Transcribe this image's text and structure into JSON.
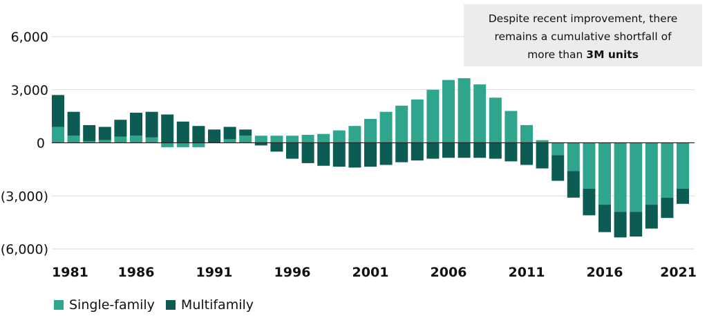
{
  "annotation": {
    "line1": "Despite recent improvement, there",
    "line2": "remains a cumulative shortfall of",
    "line3_pre": "more than ",
    "line3_bold": "3M units"
  },
  "legend": {
    "single_label": "Single-family",
    "multi_label": "Multifamily"
  },
  "colors": {
    "single": "#2ea58c",
    "multi": "#0d5c54",
    "grid": "#d9d9d9",
    "zero": "#222222"
  },
  "chart_data": {
    "type": "bar",
    "stacked": true,
    "x": [
      1981,
      1982,
      1983,
      1984,
      1985,
      1986,
      1987,
      1988,
      1989,
      1990,
      1991,
      1992,
      1993,
      1994,
      1995,
      1996,
      1997,
      1998,
      1999,
      2000,
      2001,
      2002,
      2003,
      2004,
      2005,
      2006,
      2007,
      2008,
      2009,
      2010,
      2011,
      2012,
      2013,
      2014,
      2015,
      2016,
      2017,
      2018,
      2019,
      2020,
      2021
    ],
    "series": [
      {
        "name": "Single-family",
        "values": [
          900,
          400,
          100,
          150,
          350,
          400,
          300,
          -250,
          -250,
          -250,
          0,
          200,
          400,
          400,
          400,
          400,
          450,
          500,
          700,
          950,
          1350,
          1750,
          2100,
          2450,
          3000,
          3550,
          3650,
          3300,
          2550,
          1800,
          1000,
          150,
          -700,
          -1600,
          -2600,
          -3500,
          -3900,
          -3900,
          -3500,
          -3100,
          -2600
        ]
      },
      {
        "name": "Multifamily",
        "values": [
          1800,
          1350,
          900,
          750,
          950,
          1300,
          1450,
          1600,
          1200,
          950,
          750,
          700,
          350,
          -150,
          -500,
          -900,
          -1150,
          -1300,
          -1350,
          -1400,
          -1350,
          -1250,
          -1100,
          -1000,
          -900,
          -850,
          -850,
          -850,
          -900,
          -1050,
          -1250,
          -1450,
          -1450,
          -1500,
          -1500,
          -1550,
          -1450,
          -1400,
          -1350,
          -1150,
          -850
        ]
      }
    ],
    "yticks": [
      6000,
      3000,
      0,
      -3000,
      -6000
    ],
    "ytick_labels": [
      "6,000",
      "3,000",
      "0",
      "(3,000)",
      "(6,000)"
    ],
    "xtick_labels": [
      "1981",
      "1986",
      "1991",
      "1996",
      "2001",
      "2006",
      "2011",
      "2016",
      "2021"
    ],
    "ylim": [
      -6000,
      6000
    ],
    "grid": true,
    "legend_position": "bottom-left"
  }
}
